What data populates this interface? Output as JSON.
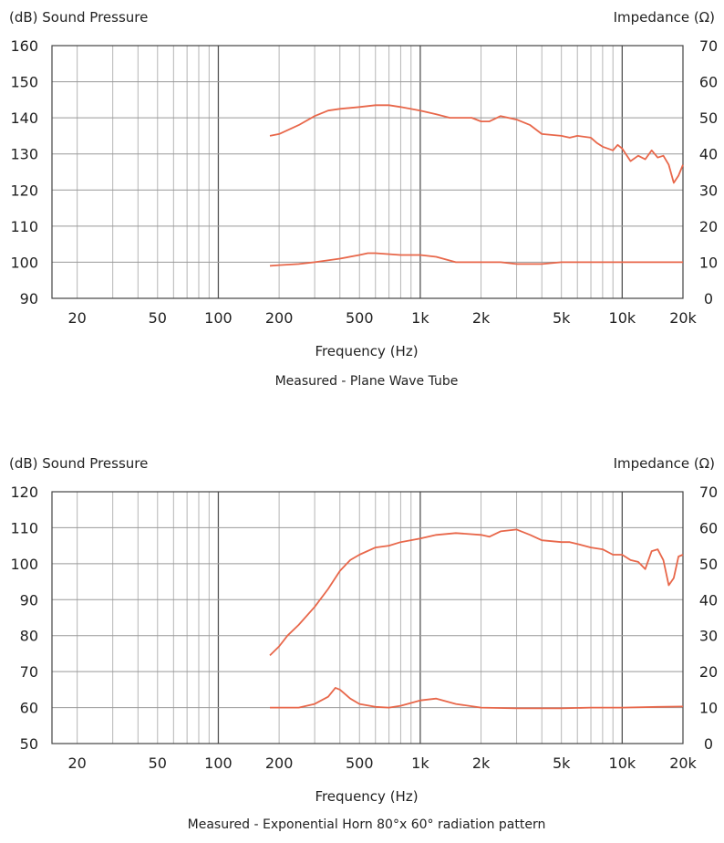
{
  "chart_data": [
    {
      "type": "line",
      "title": "",
      "caption": "Measured - Plane Wave Tube",
      "xlabel": "Frequency (Hz)",
      "ylabel_left": "(dB) Sound Pressure",
      "ylabel_right": "Impedance (Ω)",
      "xscale": "log",
      "xlim": [
        15,
        20000
      ],
      "ylim_left": [
        90,
        160
      ],
      "ylim_right": [
        0,
        70
      ],
      "x_ticks": [
        {
          "value": 20,
          "label": "20"
        },
        {
          "value": 50,
          "label": "50"
        },
        {
          "value": 100,
          "label": "100"
        },
        {
          "value": 200,
          "label": "200"
        },
        {
          "value": 500,
          "label": "500"
        },
        {
          "value": 1000,
          "label": "1k"
        },
        {
          "value": 2000,
          "label": "2k"
        },
        {
          "value": 5000,
          "label": "5k"
        },
        {
          "value": 10000,
          "label": "10k"
        },
        {
          "value": 20000,
          "label": "20k"
        }
      ],
      "y_ticks_left": [
        90,
        100,
        110,
        120,
        130,
        140,
        150,
        160
      ],
      "y_ticks_right": [
        0,
        10,
        20,
        30,
        40,
        50,
        60,
        70
      ],
      "grid": true,
      "line_color": "#e8674a",
      "series": [
        {
          "axis": "left",
          "x": [
            180,
            200,
            250,
            300,
            350,
            400,
            500,
            600,
            700,
            800,
            1000,
            1200,
            1400,
            1600,
            1800,
            2000,
            2200,
            2500,
            3000,
            3500,
            4000,
            5000,
            5500,
            6000,
            7000,
            7500,
            8000,
            9000,
            9500,
            10000,
            11000,
            12000,
            13000,
            14000,
            15000,
            16000,
            17000,
            18000,
            19000,
            20000
          ],
          "y": [
            135,
            135.5,
            138,
            140.5,
            142,
            142.5,
            143,
            143.5,
            143.5,
            143,
            142,
            141,
            140,
            140,
            140,
            139,
            139,
            140.5,
            139.5,
            138,
            135.5,
            135,
            134.5,
            135,
            134.5,
            133,
            132,
            131,
            132.5,
            131.5,
            128,
            129.5,
            128.5,
            131,
            129,
            129.5,
            127,
            122,
            124,
            127
          ]
        },
        {
          "axis": "right",
          "x": [
            180,
            200,
            250,
            300,
            400,
            500,
            550,
            600,
            800,
            1000,
            1200,
            1500,
            2000,
            2500,
            3000,
            4000,
            5000,
            7000,
            10000,
            15000,
            20000
          ],
          "y": [
            9,
            9.2,
            9.5,
            10,
            11,
            12,
            12.5,
            12.5,
            12,
            12,
            11.5,
            10,
            10,
            10,
            9.5,
            9.5,
            10,
            10,
            10,
            10,
            10
          ]
        }
      ]
    },
    {
      "type": "line",
      "title": "",
      "caption": "Measured - Exponential Horn 80°x 60° radiation pattern",
      "xlabel": "Frequency (Hz)",
      "ylabel_left": "(dB) Sound Pressure",
      "ylabel_right": "Impedance (Ω)",
      "xscale": "log",
      "xlim": [
        15,
        20000
      ],
      "ylim_left": [
        50,
        120
      ],
      "ylim_right": [
        0,
        70
      ],
      "x_ticks": [
        {
          "value": 20,
          "label": "20"
        },
        {
          "value": 50,
          "label": "50"
        },
        {
          "value": 100,
          "label": "100"
        },
        {
          "value": 200,
          "label": "200"
        },
        {
          "value": 500,
          "label": "500"
        },
        {
          "value": 1000,
          "label": "1k"
        },
        {
          "value": 2000,
          "label": "2k"
        },
        {
          "value": 5000,
          "label": "5k"
        },
        {
          "value": 10000,
          "label": "10k"
        },
        {
          "value": 20000,
          "label": "20k"
        }
      ],
      "y_ticks_left": [
        50,
        60,
        70,
        80,
        90,
        100,
        110,
        120
      ],
      "y_ticks_right": [
        0,
        10,
        20,
        30,
        40,
        50,
        60,
        70
      ],
      "grid": true,
      "line_color": "#e8674a",
      "series": [
        {
          "axis": "left",
          "x": [
            180,
            200,
            220,
            250,
            300,
            350,
            400,
            450,
            500,
            600,
            700,
            800,
            1000,
            1200,
            1500,
            2000,
            2200,
            2500,
            3000,
            3500,
            4000,
            5000,
            5500,
            6000,
            7000,
            8000,
            9000,
            10000,
            11000,
            12000,
            13000,
            14000,
            15000,
            16000,
            17000,
            18000,
            19000,
            20000
          ],
          "y": [
            74.5,
            77,
            80,
            83,
            88,
            93,
            98,
            101,
            102.5,
            104.5,
            105,
            106,
            107,
            108,
            108.5,
            108,
            107.5,
            109,
            109.5,
            108,
            106.5,
            106,
            106,
            105.5,
            104.5,
            104,
            102.5,
            102.5,
            101,
            100.5,
            98.5,
            103.5,
            104,
            101,
            94,
            96,
            102,
            102.5
          ]
        },
        {
          "axis": "right",
          "x": [
            180,
            200,
            250,
            300,
            350,
            380,
            400,
            450,
            500,
            600,
            700,
            800,
            1000,
            1200,
            1500,
            2000,
            3000,
            5000,
            7000,
            10000,
            15000,
            20000
          ],
          "y": [
            10,
            10,
            10,
            11,
            13,
            15.5,
            15,
            12.5,
            11,
            10.2,
            10,
            10.5,
            12,
            12.5,
            11,
            10,
            9.8,
            9.8,
            10,
            10,
            10.2,
            10.3
          ]
        }
      ]
    }
  ]
}
